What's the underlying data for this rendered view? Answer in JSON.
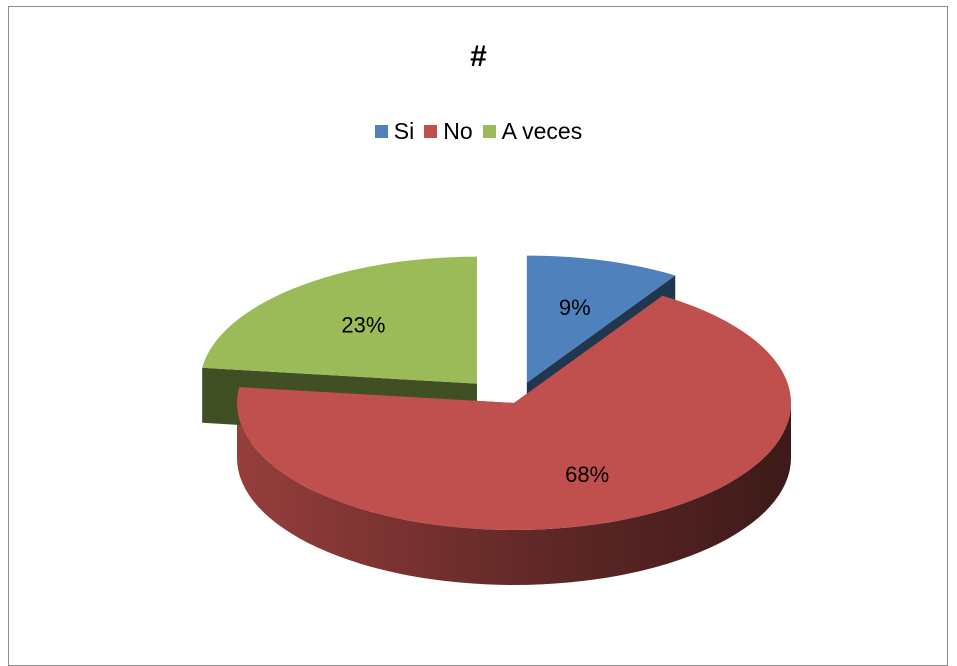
{
  "chart_data": {
    "type": "pie",
    "title": "#",
    "categories": [
      "Si",
      "No",
      "A veces"
    ],
    "values": [
      9,
      68,
      23
    ],
    "labels": [
      "9%",
      "68%",
      "23%"
    ],
    "colors": [
      "#4f81bd",
      "#c0504d",
      "#9bbb59"
    ],
    "legend_position": "top",
    "exploded": true,
    "three_d": true
  }
}
